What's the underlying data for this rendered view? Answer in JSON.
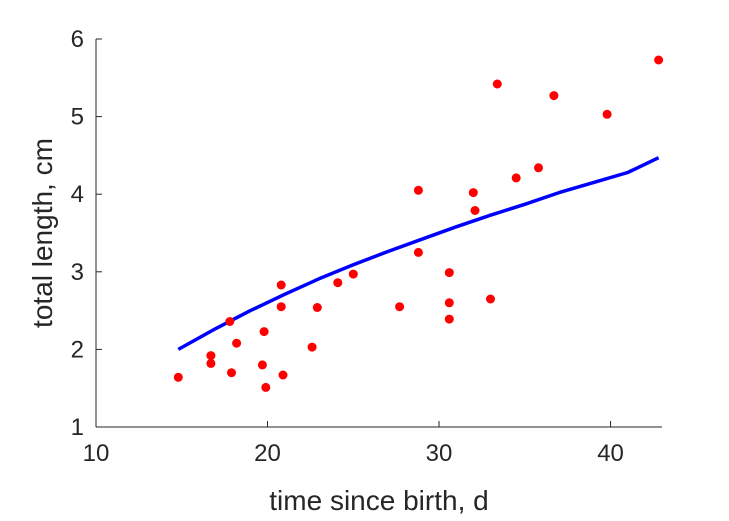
{
  "chart_data": {
    "type": "scatter",
    "xlabel": "time since birth, d",
    "ylabel": "total length, cm",
    "xlim": [
      10,
      43
    ],
    "ylim": [
      1,
      6
    ],
    "xticks": [
      10,
      20,
      30,
      40
    ],
    "yticks": [
      1,
      2,
      3,
      4,
      5,
      6
    ],
    "grid": false,
    "colors": {
      "points": "#ff0000",
      "curve": "#0000ff",
      "axis": "#262626"
    },
    "series": [
      {
        "kind": "points",
        "x": [
          14.8,
          16.7,
          16.7,
          17.8,
          17.9,
          18.2,
          19.7,
          19.8,
          19.9,
          20.8,
          20.8,
          20.9,
          22.6,
          22.9,
          24.1,
          25.0,
          27.7,
          28.8,
          28.8,
          30.6,
          30.6,
          30.6,
          32.0,
          32.1,
          33.0,
          33.4,
          34.5,
          35.8,
          36.7,
          39.8,
          42.8
        ],
        "y": [
          1.64,
          1.92,
          1.82,
          2.36,
          1.7,
          2.08,
          1.8,
          2.23,
          1.51,
          2.83,
          2.55,
          1.67,
          2.03,
          2.54,
          2.86,
          2.97,
          2.55,
          4.05,
          3.25,
          2.99,
          2.6,
          2.39,
          4.02,
          3.79,
          2.65,
          5.42,
          4.21,
          4.34,
          5.27,
          5.03,
          5.73
        ]
      },
      {
        "kind": "fit-curve",
        "x": [
          14.8,
          17,
          19,
          21,
          23,
          25,
          27,
          29,
          31,
          33,
          35,
          37,
          39,
          41,
          42.8
        ],
        "y": [
          2.0,
          2.27,
          2.5,
          2.71,
          2.91,
          3.09,
          3.26,
          3.42,
          3.58,
          3.73,
          3.87,
          4.02,
          4.15,
          4.28,
          4.47
        ]
      }
    ]
  }
}
